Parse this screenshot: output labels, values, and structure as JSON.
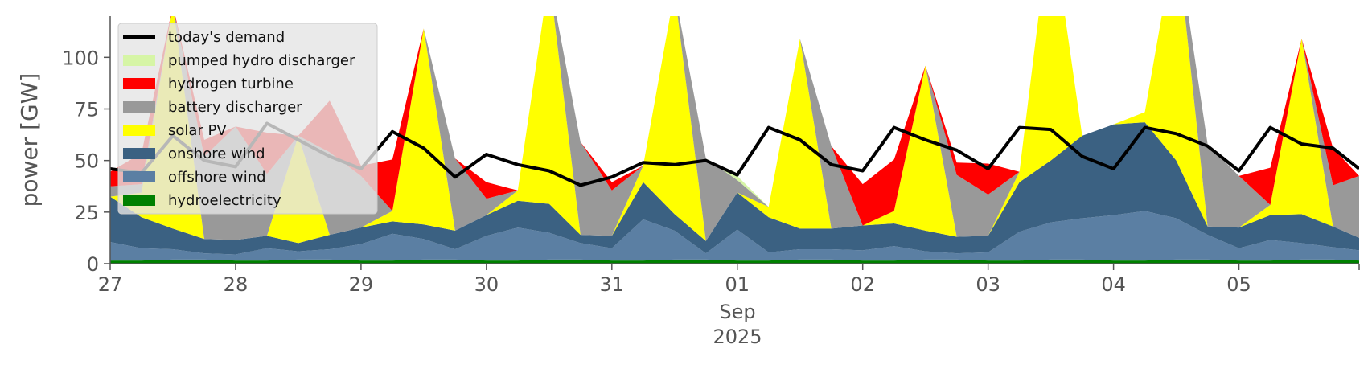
{
  "chart_data": {
    "type": "area",
    "ylabel": "power [GW]",
    "ylim": [
      0,
      120
    ],
    "yticks": [
      0,
      25,
      50,
      75,
      100
    ],
    "xlim": [
      "2025-08-27",
      "2025-09-05T23:00"
    ],
    "xticks": [
      {
        "date": "2025-08-27",
        "label": "27"
      },
      {
        "date": "2025-08-28",
        "label": "28"
      },
      {
        "date": "2025-08-29",
        "label": "29"
      },
      {
        "date": "2025-08-30",
        "label": "30"
      },
      {
        "date": "2025-08-31",
        "label": "31"
      },
      {
        "date": "2025-09-01",
        "label": "01"
      },
      {
        "date": "2025-09-02",
        "label": "02"
      },
      {
        "date": "2025-09-03",
        "label": "03"
      },
      {
        "date": "2025-09-04",
        "label": "04"
      },
      {
        "date": "2025-09-05",
        "label": "05"
      }
    ],
    "xlabel_month": "Sep",
    "xlabel_year": "2025",
    "legend_position": "top-left",
    "grid": false,
    "x": [
      "2025-08-27T00:00",
      "2025-08-27T06:00",
      "2025-08-27T12:00",
      "2025-08-27T18:00",
      "2025-08-28T00:00",
      "2025-08-28T06:00",
      "2025-08-28T12:00",
      "2025-08-28T18:00",
      "2025-08-29T00:00",
      "2025-08-29T06:00",
      "2025-08-29T12:00",
      "2025-08-29T18:00",
      "2025-08-30T00:00",
      "2025-08-30T06:00",
      "2025-08-30T12:00",
      "2025-08-30T18:00",
      "2025-08-31T00:00",
      "2025-08-31T06:00",
      "2025-08-31T12:00",
      "2025-08-31T18:00",
      "2025-09-01T00:00",
      "2025-09-01T06:00",
      "2025-09-01T12:00",
      "2025-09-01T18:00",
      "2025-09-02T00:00",
      "2025-09-02T06:00",
      "2025-09-02T12:00",
      "2025-09-02T18:00",
      "2025-09-03T00:00",
      "2025-09-03T06:00",
      "2025-09-03T12:00",
      "2025-09-03T18:00",
      "2025-09-04T00:00",
      "2025-09-04T06:00",
      "2025-09-04T12:00",
      "2025-09-04T18:00",
      "2025-09-05T00:00",
      "2025-09-05T06:00",
      "2025-09-05T12:00",
      "2025-09-05T18:00",
      "2025-09-05T23:00"
    ],
    "series": [
      {
        "name": "hydroelectricity",
        "color": "#008000",
        "values": [
          1.5,
          1.5,
          2,
          2,
          1.5,
          1.5,
          2,
          2,
          1.5,
          1.5,
          2,
          2,
          1.5,
          1.5,
          2,
          2,
          1.5,
          1.5,
          2,
          2,
          1.5,
          1.5,
          2,
          2,
          1.5,
          1.5,
          2,
          2,
          1.5,
          1.5,
          2,
          2,
          1.5,
          1.5,
          2,
          2,
          1.5,
          1.5,
          2,
          2,
          1.5
        ]
      },
      {
        "name": "offshore wind",
        "color": "#5b7fa3",
        "values": [
          9,
          6,
          5,
          3,
          3,
          6,
          4,
          5,
          8,
          13,
          10,
          5,
          12,
          16,
          13,
          8,
          6,
          20,
          14,
          3,
          15,
          4,
          5,
          5,
          5,
          7,
          4,
          3,
          4,
          14,
          18,
          20,
          22,
          24,
          20,
          12,
          6,
          10,
          8,
          6,
          5
        ]
      },
      {
        "name": "onshore wind",
        "color": "#3b6182",
        "values": [
          22,
          15,
          10,
          7,
          7,
          6,
          4,
          7,
          8,
          6,
          7,
          9,
          10,
          13,
          14,
          4,
          6,
          18,
          8,
          6,
          18,
          17,
          10,
          10,
          12,
          11,
          10,
          8,
          8,
          24,
          30,
          40,
          44,
          43,
          28,
          4,
          10,
          12,
          14,
          10,
          6
        ]
      },
      {
        "name": "solar PV",
        "color": "#ffff00",
        "values": [
          0,
          12,
          108,
          0,
          0,
          0,
          52,
          0,
          0,
          5,
          95,
          0,
          0,
          5,
          110,
          0,
          0,
          8,
          108,
          0,
          0,
          5,
          92,
          0,
          0,
          6,
          80,
          0,
          0,
          5,
          118,
          0,
          0,
          5,
          110,
          0,
          0,
          5,
          85,
          0,
          0
        ]
      },
      {
        "name": "battery discharger",
        "color": "#999999",
        "values": [
          5,
          4,
          0,
          40,
          55,
          30,
          0,
          40,
          25,
          0,
          0,
          35,
          8,
          0,
          0,
          45,
          22,
          0,
          0,
          40,
          6,
          0,
          0,
          40,
          0,
          0,
          0,
          30,
          20,
          0,
          0,
          0,
          0,
          0,
          0,
          40,
          25,
          0,
          0,
          20,
          30
        ]
      },
      {
        "name": "hydrogen turbine",
        "color": "#ff0000",
        "values": [
          7,
          15,
          0,
          8,
          0,
          20,
          0,
          25,
          5,
          25,
          0,
          0,
          8,
          0,
          0,
          0,
          4,
          0,
          0,
          0,
          0,
          0,
          0,
          0,
          20,
          25,
          0,
          6,
          15,
          0,
          0,
          0,
          0,
          0,
          0,
          0,
          0,
          18,
          0,
          18,
          0
        ]
      },
      {
        "name": "pumped hydro discharger",
        "color": "#d6f5a6",
        "values": [
          0,
          0,
          0,
          0,
          0,
          0,
          0,
          0,
          0,
          0,
          0,
          0,
          0,
          0,
          0,
          0,
          0,
          0,
          0,
          0,
          2,
          0,
          0,
          0,
          0,
          0,
          0,
          0,
          0,
          0,
          0,
          0,
          0,
          0,
          0,
          0,
          0,
          0,
          0,
          0,
          0
        ]
      }
    ],
    "demand": {
      "name": "today's demand",
      "color": "#000000",
      "values": [
        46,
        44,
        62,
        50,
        47,
        68,
        60,
        52,
        46,
        64,
        56,
        42,
        53,
        48,
        45,
        38,
        42,
        49,
        48,
        50,
        43,
        66,
        60,
        48,
        45,
        66,
        60,
        55,
        46,
        66,
        65,
        52,
        46,
        66,
        63,
        57,
        45,
        66,
        58,
        56,
        46
      ]
    },
    "legend": [
      "today's demand",
      "pumped hydro discharger",
      "hydrogen turbine",
      "battery discharger",
      "solar PV",
      "onshore wind",
      "offshore wind",
      "hydroelectricity"
    ]
  }
}
